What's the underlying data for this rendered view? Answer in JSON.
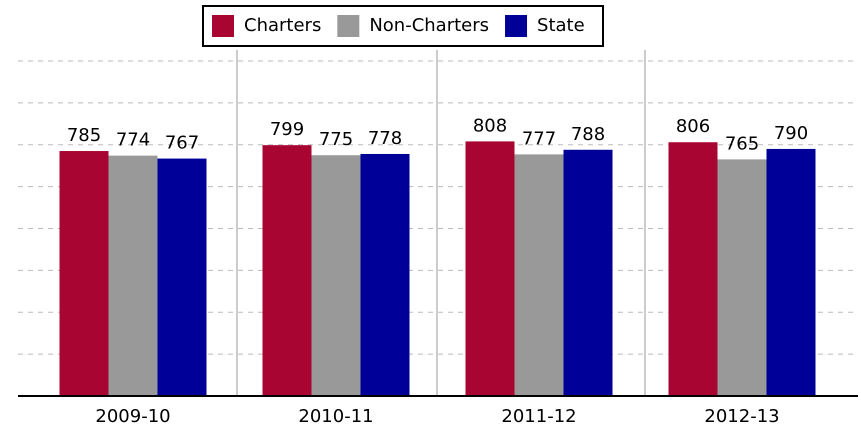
{
  "chart_data": {
    "type": "bar",
    "categories": [
      "2009-10",
      "2010-11",
      "2011-12",
      "2012-13"
    ],
    "series": [
      {
        "name": "Charters",
        "color": "#a90533",
        "values": [
          785,
          799,
          808,
          806
        ]
      },
      {
        "name": "Non-Charters",
        "color": "#999999",
        "values": [
          774,
          775,
          777,
          765
        ]
      },
      {
        "name": "State",
        "color": "#000099",
        "values": [
          767,
          778,
          788,
          790
        ]
      }
    ],
    "ylim": [
      200,
      1000
    ],
    "yticks": [
      200,
      300,
      400,
      500,
      600,
      700,
      800,
      900,
      1000
    ],
    "grid": true,
    "legend": "top"
  }
}
